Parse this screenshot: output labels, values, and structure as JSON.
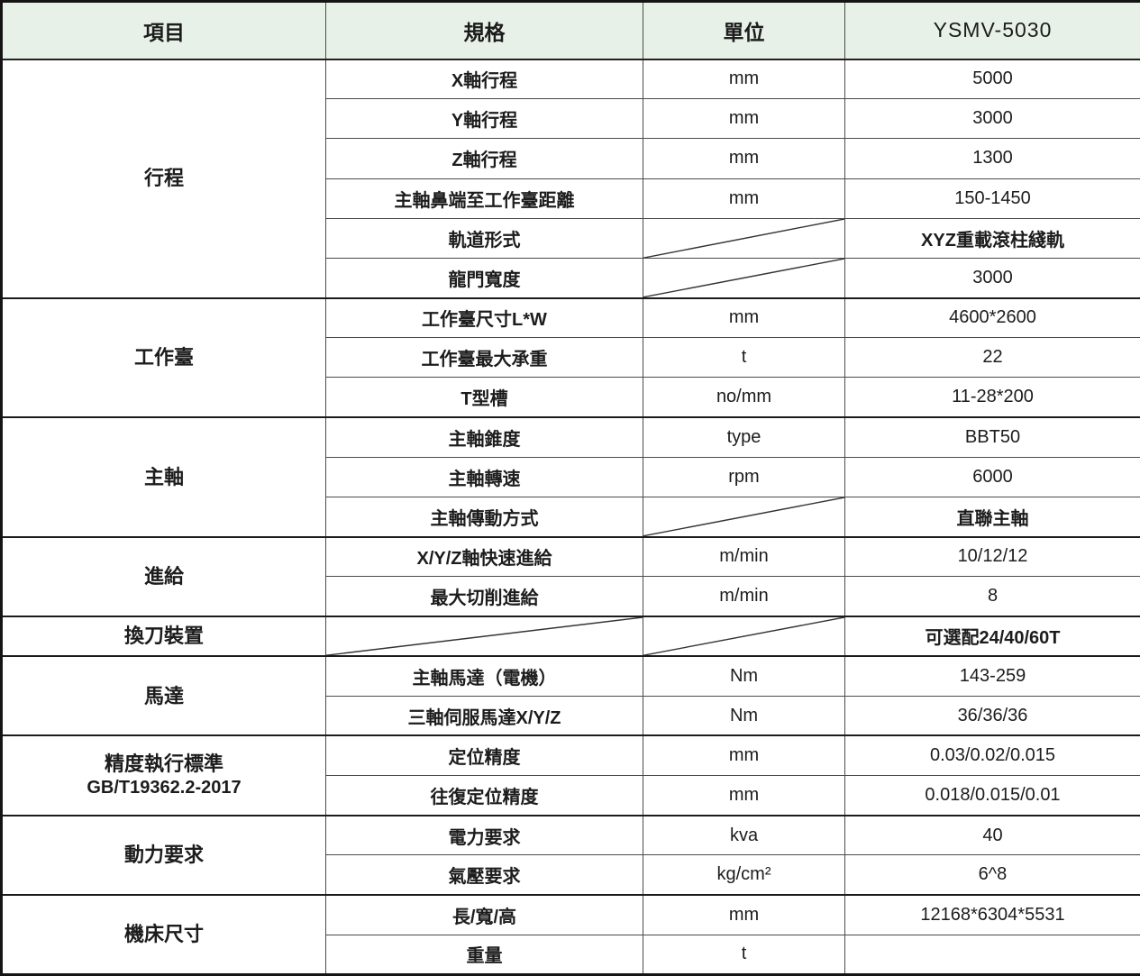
{
  "header": {
    "item": "項目",
    "spec": "規格",
    "unit": "單位",
    "model": "YSMV-5030"
  },
  "colors": {
    "header_bg": "#e8f1e8",
    "border": "#1b1b1b",
    "text": "#1c1c1c"
  },
  "groups": [
    {
      "label": "行程",
      "rows": [
        {
          "spec": "X軸行程",
          "unit": "mm",
          "value": "5000"
        },
        {
          "spec": "Y軸行程",
          "unit": "mm",
          "value": "3000"
        },
        {
          "spec": "Z軸行程",
          "unit": "mm",
          "value": "1300"
        },
        {
          "spec": "主軸鼻端至工作臺距離",
          "unit": "mm",
          "value": "150-1450"
        },
        {
          "spec": "軌道形式",
          "unit_slash": true,
          "value": "XYZ重載滾柱綫軌",
          "value_cjk": true
        },
        {
          "spec": "龍門寬度",
          "unit_slash": true,
          "value": "3000"
        }
      ]
    },
    {
      "label": "工作臺",
      "rows": [
        {
          "spec": "工作臺尺寸L*W",
          "unit": "mm",
          "value": "4600*2600"
        },
        {
          "spec": "工作臺最大承重",
          "unit": "t",
          "value": "22"
        },
        {
          "spec": "T型槽",
          "unit": "no/mm",
          "value": "11-28*200"
        }
      ]
    },
    {
      "label": "主軸",
      "rows": [
        {
          "spec": "主軸錐度",
          "unit": "type",
          "value": "BBT50"
        },
        {
          "spec": "主軸轉速",
          "unit": "rpm",
          "value": "6000"
        },
        {
          "spec": "主軸傳動方式",
          "unit_slash": true,
          "value": "直聯主軸",
          "value_cjk": true
        }
      ]
    },
    {
      "label": "進給",
      "rows": [
        {
          "spec": "X/Y/Z軸快速進給",
          "unit": "m/min",
          "value": "10/12/12"
        },
        {
          "spec": "最大切削進給",
          "unit": "m/min",
          "value": "8"
        }
      ]
    },
    {
      "label": "換刀裝置",
      "rows": [
        {
          "spec": "",
          "spec_slash": true,
          "unit_slash": true,
          "value": "可選配24/40/60T",
          "value_cjk": true
        }
      ]
    },
    {
      "label": "馬達",
      "rows": [
        {
          "spec": "主軸馬達（電機）",
          "unit": "Nm",
          "value": "143-259"
        },
        {
          "spec": "三軸伺服馬達X/Y/Z",
          "unit": "Nm",
          "value": "36/36/36"
        }
      ]
    },
    {
      "label": "精度執行標準",
      "sublabel": "GB/T19362.2-2017",
      "rows": [
        {
          "spec": "定位精度",
          "unit": "mm",
          "value": "0.03/0.02/0.015"
        },
        {
          "spec": "往復定位精度",
          "unit": "mm",
          "value": "0.018/0.015/0.01"
        }
      ]
    },
    {
      "label": "動力要求",
      "rows": [
        {
          "spec": "電力要求",
          "unit": "kva",
          "value": "40"
        },
        {
          "spec": "氣壓要求",
          "unit": "kg/cm²",
          "value": "6^8"
        }
      ]
    },
    {
      "label": "機床尺寸",
      "rows": [
        {
          "spec": "長/寬/高",
          "unit": "mm",
          "value": "12168*6304*5531"
        },
        {
          "spec": "重量",
          "unit": "t",
          "value": ""
        }
      ]
    }
  ]
}
